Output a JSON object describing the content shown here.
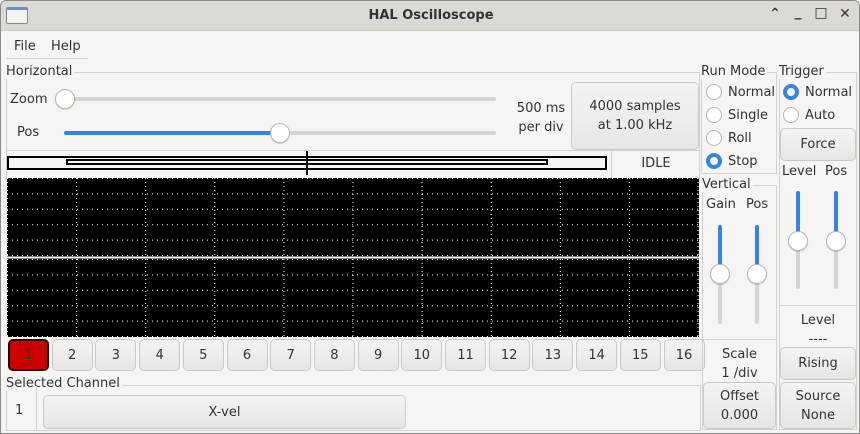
{
  "window": {
    "title": "HAL Oscilloscope",
    "controls": [
      "collapse-icon",
      "minimize-icon",
      "maximize-icon",
      "close-icon"
    ]
  },
  "menu": {
    "file": "File",
    "help": "Help"
  },
  "horizontal": {
    "label": "Horizontal",
    "zoom_label": "Zoom",
    "zoom_value": 0,
    "pos_label": "Pos",
    "pos_value": 0.5,
    "rate_line1": "500 ms",
    "rate_line2": "per div",
    "samples_line1": "4000 samples",
    "samples_line2": "at 1.00 kHz",
    "status": "IDLE"
  },
  "channels": {
    "buttons": [
      "1",
      "2",
      "3",
      "4",
      "5",
      "6",
      "7",
      "8",
      "9",
      "10",
      "11",
      "12",
      "13",
      "14",
      "15",
      "16"
    ],
    "selected": "1",
    "selected_color": "#cc0000"
  },
  "selected_channel": {
    "label": "Selected Channel",
    "number": "1",
    "name": "X-vel"
  },
  "run_mode": {
    "label": "Run Mode",
    "options": [
      "Normal",
      "Single",
      "Roll",
      "Stop"
    ],
    "selected": "Stop"
  },
  "trigger": {
    "label": "Trigger",
    "options": [
      "Normal",
      "Auto"
    ],
    "selected": "Normal",
    "force": "Force",
    "level_label": "Level",
    "pos_label": "Pos",
    "level_value": 0.5,
    "pos_value": 0.5,
    "level_title": "Level",
    "level_readout": "----",
    "edge": "Rising",
    "source_line1": "Source",
    "source_line2": "None"
  },
  "vertical": {
    "label": "Vertical",
    "gain_label": "Gain",
    "pos_label": "Pos",
    "gain_value": 0.5,
    "pos_value": 0.5,
    "scale_line1": "Scale",
    "scale_line2": "1 /div",
    "offset_line1": "Offset",
    "offset_line2": "0.000"
  },
  "colors": {
    "accent": "#3584e4",
    "scope_bg": "#000000",
    "grid": "#ffffff"
  }
}
